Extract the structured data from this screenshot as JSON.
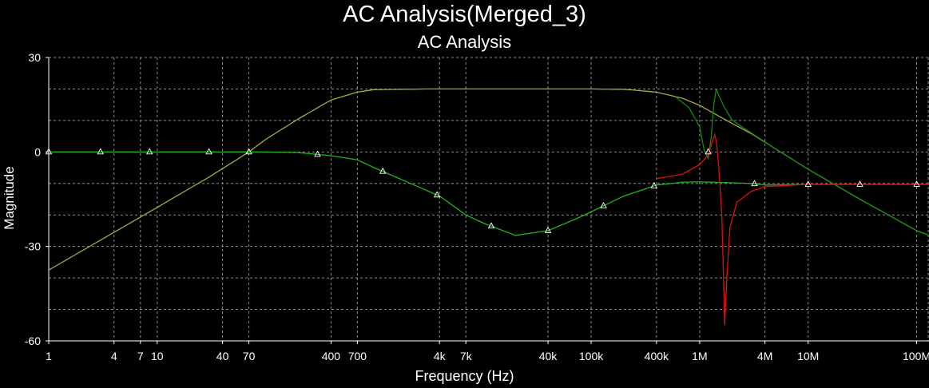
{
  "chart_data": {
    "type": "line",
    "title": "AC Analysis(Merged_3)",
    "subtitle": "AC Analysis",
    "xlabel": "Frequency (Hz)",
    "ylabel": "Magnitude",
    "xscale": "log",
    "xlim": [
      1,
      130000000
    ],
    "ylim": [
      -60,
      30
    ],
    "grid": true,
    "x_tick_labels": [
      "1",
      "4",
      "7",
      "10",
      "40",
      "70",
      "400",
      "700",
      "4k",
      "7k",
      "40k",
      "100k",
      "400k",
      "1M",
      "4M",
      "10M",
      "100M"
    ],
    "x_tick_values": [
      1,
      4,
      7,
      10,
      40,
      70,
      400,
      700,
      4000,
      7000,
      40000,
      100000,
      400000,
      1000000,
      4000000,
      10000000,
      100000000
    ],
    "y_tick_labels": [
      "30",
      "0",
      "-30",
      "-60"
    ],
    "y_tick_values": [
      30,
      0,
      -30,
      -60
    ],
    "colors": {
      "background": "#000000",
      "grid": "#8c8c8c",
      "text": "#ffffff"
    },
    "series": [
      {
        "color": "#a9a945",
        "points": [
          [
            1,
            -37.5
          ],
          [
            3,
            -28
          ],
          [
            10,
            -17.6
          ],
          [
            30,
            -8
          ],
          [
            70,
            0
          ],
          [
            100,
            4
          ],
          [
            200,
            10.5
          ],
          [
            400,
            16.5
          ],
          [
            700,
            19
          ],
          [
            1000,
            19.8
          ],
          [
            3000,
            20
          ],
          [
            10000,
            20
          ],
          [
            100000,
            20
          ],
          [
            200000,
            19.9
          ],
          [
            400000,
            19
          ],
          [
            700000,
            17
          ],
          [
            1000000,
            14.8
          ],
          [
            2000000,
            9
          ],
          [
            3000000,
            5.8
          ],
          [
            5000000,
            1
          ],
          [
            10000000,
            -5.5
          ],
          [
            30000000,
            -15
          ],
          [
            100000000,
            -25
          ],
          [
            130000000,
            -26.5
          ]
        ]
      },
      {
        "color": "#22b322",
        "points": [
          [
            1,
            0
          ],
          [
            10,
            0
          ],
          [
            100,
            0
          ],
          [
            200,
            -0.2
          ],
          [
            400,
            -1.2
          ],
          [
            700,
            -2.5
          ],
          [
            1000,
            -5
          ],
          [
            2000,
            -9.5
          ],
          [
            4000,
            -14
          ],
          [
            7000,
            -20
          ],
          [
            10000,
            -22.5
          ],
          [
            20000,
            -26.5
          ],
          [
            40000,
            -25
          ],
          [
            70000,
            -21.5
          ],
          [
            100000,
            -19
          ],
          [
            200000,
            -14
          ],
          [
            400000,
            -10.5
          ],
          [
            700000,
            -9.6
          ],
          [
            1000000,
            -9.5
          ],
          [
            2000000,
            -9.8
          ],
          [
            3000000,
            -10
          ],
          [
            4000000,
            -10.5
          ],
          [
            10000000,
            -10.3
          ],
          [
            100000000,
            -10.3
          ],
          [
            130000000,
            -10.3
          ]
        ]
      },
      {
        "color": "#138a13",
        "points": [
          [
            600000,
            17.5
          ],
          [
            800000,
            14
          ],
          [
            1000000,
            8
          ],
          [
            1100000,
            0.5
          ],
          [
            1200000,
            -2
          ],
          [
            1280000,
            5
          ],
          [
            1350000,
            15
          ],
          [
            1420000,
            20
          ],
          [
            1500000,
            18
          ],
          [
            1700000,
            14
          ],
          [
            2000000,
            10
          ],
          [
            3000000,
            6
          ],
          [
            5000000,
            1
          ],
          [
            10000000,
            -5.5
          ],
          [
            30000000,
            -15
          ],
          [
            100000000,
            -25
          ],
          [
            130000000,
            -26.5
          ]
        ]
      },
      {
        "color": "#e01010",
        "points": [
          [
            400000,
            -8.5
          ],
          [
            700000,
            -7
          ],
          [
            1000000,
            -4
          ],
          [
            1200000,
            -1
          ],
          [
            1300000,
            3
          ],
          [
            1380000,
            5.5
          ],
          [
            1430000,
            3
          ],
          [
            1500000,
            -5
          ],
          [
            1600000,
            -20
          ],
          [
            1660000,
            -40
          ],
          [
            1700000,
            -55
          ],
          [
            1780000,
            -40
          ],
          [
            1900000,
            -24
          ],
          [
            2200000,
            -16
          ],
          [
            3000000,
            -12.5
          ],
          [
            4000000,
            -11
          ],
          [
            10000000,
            -10.3
          ],
          [
            100000000,
            -10.3
          ],
          [
            130000000,
            -10.3
          ]
        ]
      }
    ]
  }
}
